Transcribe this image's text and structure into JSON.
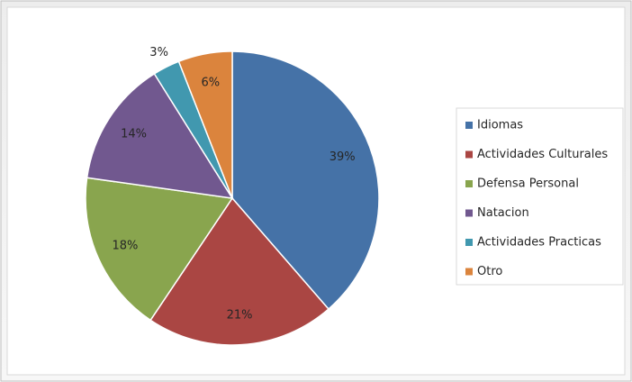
{
  "chart_data": {
    "type": "pie",
    "categories": [
      "Idiomas",
      "Actividades Culturales",
      "Defensa Personal",
      "Natacion",
      "Actividades Practicas",
      "Otro"
    ],
    "values": [
      39,
      21,
      18,
      14,
      3,
      6
    ],
    "value_labels": [
      "39%",
      "21%",
      "18%",
      "14%",
      "3%",
      "6%"
    ],
    "colors": [
      "#4572a7",
      "#aa4643",
      "#89a54e",
      "#71588f",
      "#4198af",
      "#db843d"
    ],
    "legend": "right"
  }
}
